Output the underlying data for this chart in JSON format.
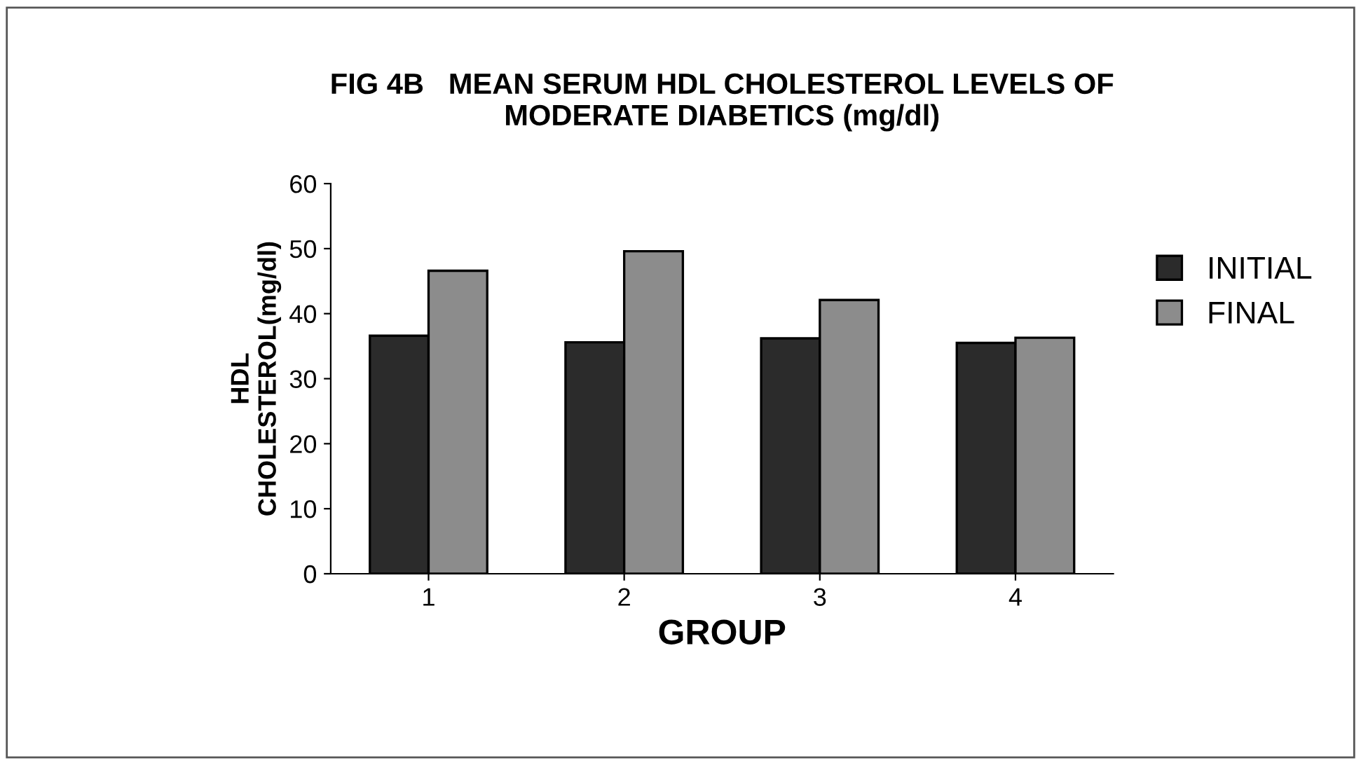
{
  "chart_data": {
    "type": "bar",
    "title": "FIG 4B   MEAN SERUM HDL CHOLESTEROL LEVELS OF\nMODERATE DIABETICS (mg/dl)",
    "xlabel": "GROUP",
    "ylabel": "HDL\nCHOLESTEROL(mg/dl)",
    "categories": [
      "1",
      "2",
      "3",
      "4"
    ],
    "series": [
      {
        "name": "INITIAL",
        "color": "#2b2b2b",
        "values": [
          36.6,
          35.6,
          36.2,
          35.5
        ]
      },
      {
        "name": "FINAL",
        "color": "#8c8c8c",
        "values": [
          46.6,
          49.6,
          42.1,
          36.3
        ]
      }
    ],
    "ylim": [
      0,
      60
    ],
    "yticks": [
      0,
      10,
      20,
      30,
      40,
      50,
      60
    ],
    "grid": false,
    "legend": "right"
  }
}
